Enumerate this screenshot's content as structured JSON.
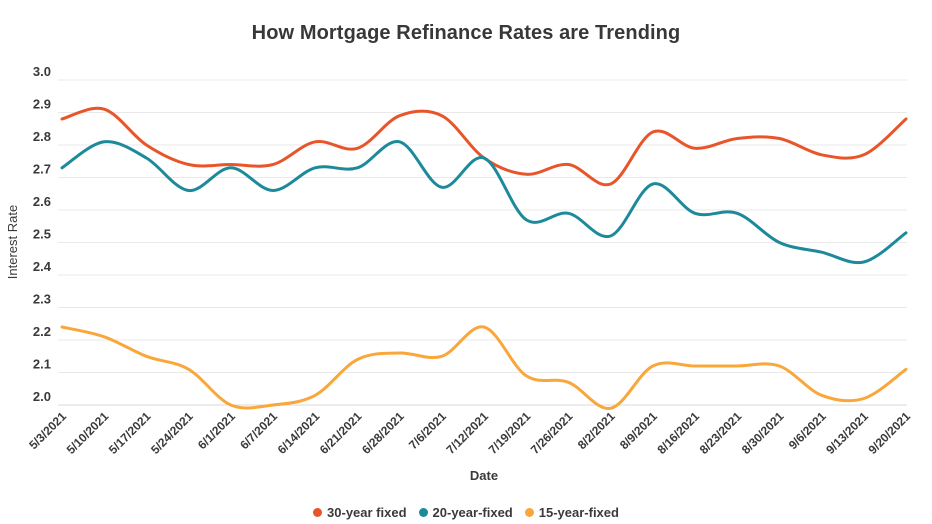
{
  "chart_data": {
    "type": "line",
    "title": "How Mortgage Refinance Rates are Trending",
    "xlabel": "Date",
    "ylabel": "Interest Rate",
    "ylim": [
      2.0,
      3.0
    ],
    "ytick_step": 0.1,
    "yticks": [
      "3.0",
      "2.9",
      "2.8",
      "2.7",
      "2.6",
      "2.5",
      "2.4",
      "2.3",
      "2.2",
      "2.1",
      "2.0"
    ],
    "grid": "horizontal",
    "legend_position": "bottom-center",
    "x_tick_rotation": -45,
    "categories": [
      "5/3/2021",
      "5/10/2021",
      "5/17/2021",
      "5/24/2021",
      "6/1/2021",
      "6/7/2021",
      "6/14/2021",
      "6/21/2021",
      "6/28/2021",
      "7/6/2021",
      "7/12/2021",
      "7/19/2021",
      "7/26/2021",
      "8/2/2021",
      "8/9/2021",
      "8/16/2021",
      "8/23/2021",
      "8/30/2021",
      "9/6/2021",
      "9/13/2021",
      "9/20/2021"
    ],
    "series": [
      {
        "name": "30-year fixed",
        "color": "#e8552a",
        "values": [
          2.88,
          2.91,
          2.8,
          2.74,
          2.74,
          2.74,
          2.81,
          2.79,
          2.89,
          2.89,
          2.76,
          2.71,
          2.74,
          2.68,
          2.84,
          2.79,
          2.82,
          2.82,
          2.77,
          2.77,
          2.88
        ]
      },
      {
        "name": "20-year-fixed",
        "color": "#1d8a9c",
        "values": [
          2.73,
          2.81,
          2.76,
          2.66,
          2.73,
          2.66,
          2.73,
          2.73,
          2.81,
          2.67,
          2.76,
          2.57,
          2.59,
          2.52,
          2.68,
          2.59,
          2.59,
          2.5,
          2.47,
          2.44,
          2.53
        ]
      },
      {
        "name": "15-year-fixed",
        "color": "#f9a63b",
        "values": [
          2.24,
          2.21,
          2.15,
          2.11,
          2.0,
          2.0,
          2.03,
          2.14,
          2.16,
          2.15,
          2.24,
          2.09,
          2.07,
          1.99,
          2.12,
          2.12,
          2.12,
          2.12,
          2.03,
          2.02,
          2.11
        ]
      }
    ]
  },
  "colors": {
    "background": "#ffffff",
    "title_text": "#383838",
    "axis_text": "#3a3a3a",
    "gridline": "#e9e9e9",
    "axis_line": "#d8d8d8"
  }
}
